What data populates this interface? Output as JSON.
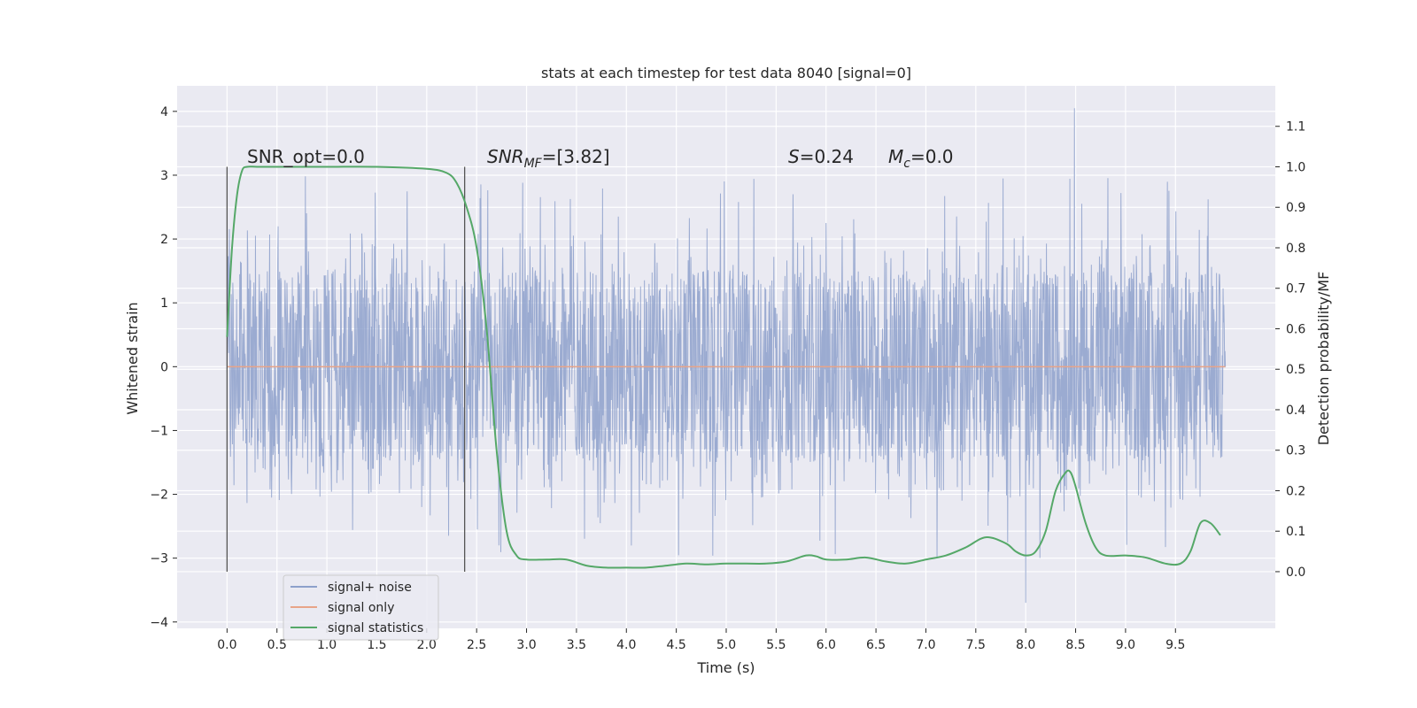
{
  "chart_data": {
    "type": "line",
    "title": "stats at each timestep for test data 8040 [signal=0]",
    "xlabel": "Time (s)",
    "ylabel": "Whitened strain",
    "y2label": "Detection probability/MF",
    "xlim": [
      -0.5,
      10.5
    ],
    "ylim": [
      -4.1,
      4.4
    ],
    "y2lim": [
      -0.14,
      1.2
    ],
    "xticks": [
      "0.0",
      "0.5",
      "1.0",
      "1.5",
      "2.0",
      "2.5",
      "3.0",
      "3.5",
      "4.0",
      "4.5",
      "5.0",
      "5.5",
      "6.0",
      "6.5",
      "7.0",
      "7.5",
      "8.0",
      "8.5",
      "9.0",
      "9.5"
    ],
    "yticks": [
      "4",
      "3",
      "2",
      "1",
      "0",
      "−1",
      "−2",
      "−3",
      "−4"
    ],
    "y2ticks": [
      "1.1",
      "1.0",
      "0.9",
      "0.8",
      "0.7",
      "0.6",
      "0.5",
      "0.4",
      "0.3",
      "0.2",
      "0.1",
      "0.0"
    ],
    "grid": true,
    "legend_position": "lower-left",
    "annotations": {
      "snr_opt": "SNR_opt=0.0",
      "snr_mf_main": "SNR",
      "snr_mf_sub": "MF",
      "snr_mf_value": "=[3.82]",
      "s_label": "S",
      "s_value": "=0.24",
      "mc_label": "M",
      "mc_sub": "c",
      "mc_value": "=0.0"
    },
    "vlines": [
      0.0,
      2.38
    ],
    "series": [
      {
        "name": "signal+ noise",
        "color": "#8da0cb",
        "kind": "noise",
        "x_range": [
          0.0,
          10.0
        ],
        "typical_abs": 1.5,
        "max": 4.05,
        "min": -3.7
      },
      {
        "name": "signal only",
        "color": "#e8a488",
        "x": [
          0.0,
          10.0
        ],
        "y": [
          0.0,
          0.0
        ]
      },
      {
        "name": "signal statistics",
        "color": "#55a868",
        "axis": "right",
        "x": [
          0.0,
          0.05,
          0.1,
          0.15,
          0.2,
          0.3,
          0.5,
          1.0,
          1.5,
          2.0,
          2.2,
          2.3,
          2.4,
          2.5,
          2.6,
          2.7,
          2.8,
          2.9,
          3.0,
          3.2,
          3.4,
          3.6,
          3.8,
          4.0,
          4.2,
          4.4,
          4.6,
          4.8,
          5.0,
          5.2,
          5.4,
          5.6,
          5.8,
          5.9,
          6.0,
          6.2,
          6.4,
          6.6,
          6.8,
          7.0,
          7.2,
          7.4,
          7.6,
          7.8,
          7.9,
          8.0,
          8.1,
          8.2,
          8.3,
          8.4,
          8.45,
          8.5,
          8.6,
          8.7,
          8.8,
          9.0,
          9.2,
          9.4,
          9.55,
          9.65,
          9.75,
          9.85,
          9.95
        ],
        "y": [
          0.58,
          0.8,
          0.93,
          0.99,
          1.0,
          1.0,
          1.0,
          1.0,
          1.0,
          0.995,
          0.985,
          0.96,
          0.9,
          0.8,
          0.6,
          0.3,
          0.1,
          0.04,
          0.03,
          0.03,
          0.03,
          0.015,
          0.01,
          0.01,
          0.01,
          0.015,
          0.02,
          0.018,
          0.02,
          0.02,
          0.02,
          0.025,
          0.04,
          0.038,
          0.03,
          0.03,
          0.035,
          0.025,
          0.02,
          0.03,
          0.04,
          0.06,
          0.085,
          0.07,
          0.05,
          0.04,
          0.05,
          0.1,
          0.2,
          0.245,
          0.245,
          0.21,
          0.12,
          0.06,
          0.04,
          0.04,
          0.035,
          0.02,
          0.02,
          0.05,
          0.12,
          0.12,
          0.09
        ]
      }
    ]
  }
}
